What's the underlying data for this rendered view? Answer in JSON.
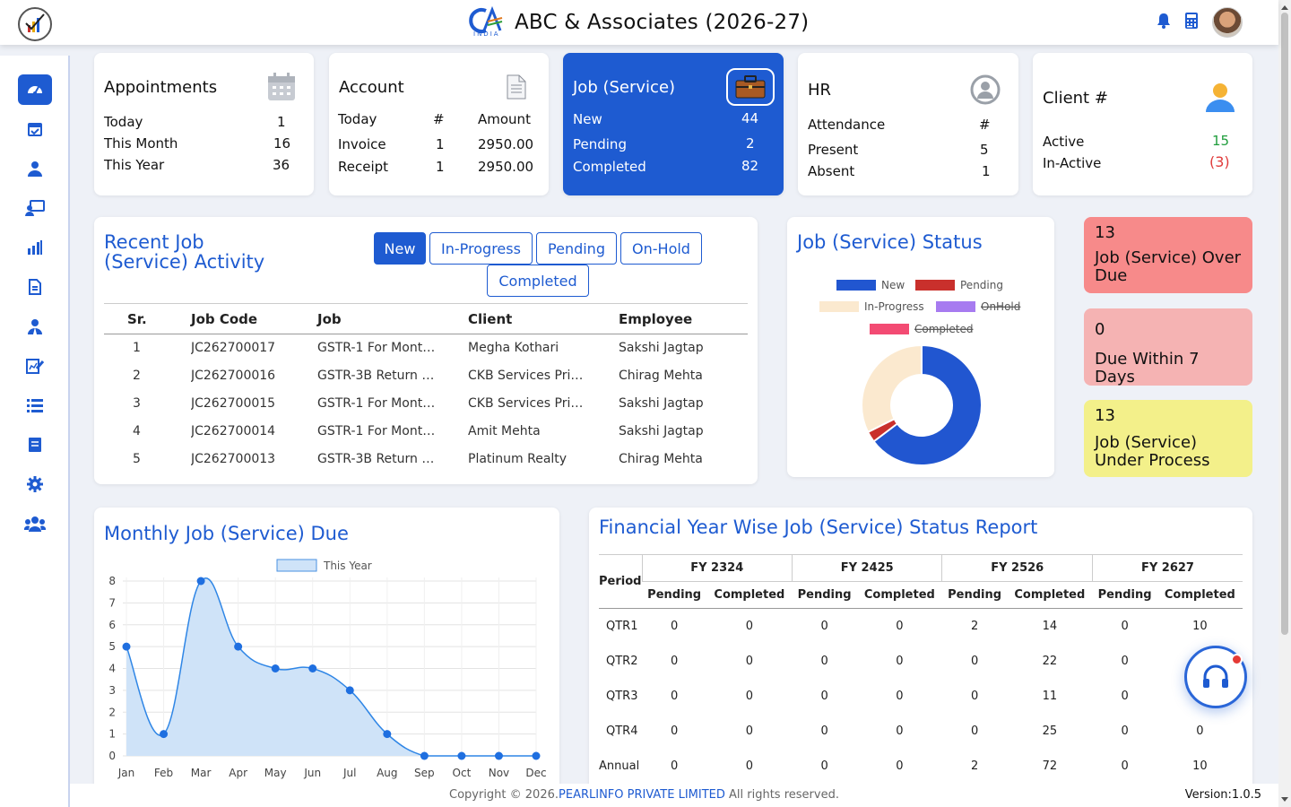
{
  "app": {
    "title": "ABC & Associates (2026-27)",
    "brand_sub": "INDIA"
  },
  "colors": {
    "primary": "#1e5bd1",
    "new": "#2156d0",
    "pending": "#c9302c",
    "in_progress": "#fbe9cf",
    "onhold": "#a77bf0",
    "completed": "#f34b73"
  },
  "appointments": {
    "title": "Appointments",
    "rows": [
      {
        "label": "Today",
        "value": "1"
      },
      {
        "label": "This Month",
        "value": "16"
      },
      {
        "label": "This Year",
        "value": "36"
      }
    ]
  },
  "account": {
    "title": "Account",
    "col1": "#",
    "col2": "Amount",
    "rows": [
      {
        "label": "Today",
        "count": "",
        "amount": ""
      },
      {
        "label": "Invoice",
        "count": "1",
        "amount": "2950.00"
      },
      {
        "label": "Receipt",
        "count": "1",
        "amount": "2950.00"
      }
    ]
  },
  "job_summary": {
    "title": "Job (Service)",
    "rows": [
      {
        "label": "New",
        "value": "44"
      },
      {
        "label": "Pending",
        "value": "2"
      },
      {
        "label": "Completed",
        "value": "82"
      }
    ]
  },
  "hr": {
    "title": "HR",
    "header_label": "Attendance",
    "header_value": "#",
    "rows": [
      {
        "label": "Present",
        "value": "5"
      },
      {
        "label": "Absent",
        "value": "1"
      }
    ]
  },
  "client": {
    "title": "Client #",
    "rows": [
      {
        "label": "Active",
        "value": "15"
      },
      {
        "label": "In-Active",
        "value": "(3)"
      }
    ]
  },
  "recent": {
    "title_line1": "Recent Job",
    "title_line2": "(Service) Activity",
    "tabs": [
      "New",
      "In-Progress",
      "Pending",
      "On-Hold",
      "Completed"
    ],
    "columns": [
      "Sr.",
      "Job Code",
      "Job",
      "Client",
      "Employee"
    ],
    "rows": [
      {
        "sr": "1",
        "code": "JC262700017",
        "job": "GSTR-1 For Mont…",
        "client": "Megha Kothari",
        "employee": "Sakshi Jagtap"
      },
      {
        "sr": "2",
        "code": "JC262700016",
        "job": "GSTR-3B Return …",
        "client": "CKB Services Pri…",
        "employee": "Chirag Mehta"
      },
      {
        "sr": "3",
        "code": "JC262700015",
        "job": "GSTR-1 For Mont…",
        "client": "CKB Services Pri…",
        "employee": "Sakshi Jagtap"
      },
      {
        "sr": "4",
        "code": "JC262700014",
        "job": "GSTR-1 For Mont…",
        "client": "Amit Mehta",
        "employee": "Sakshi Jagtap"
      },
      {
        "sr": "5",
        "code": "JC262700013",
        "job": "GSTR-3B Return …",
        "client": "Platinum Realty",
        "employee": "Chirag Mehta"
      }
    ]
  },
  "status": {
    "title": "Job (Service) Status",
    "legend": [
      {
        "name": "New",
        "hidden": false
      },
      {
        "name": "Pending",
        "hidden": false
      },
      {
        "name": "In-Progress",
        "hidden": false
      },
      {
        "name": "OnHold",
        "hidden": true
      },
      {
        "name": "Completed",
        "hidden": true
      }
    ],
    "chart_data": {
      "type": "pie",
      "variant": "doughnut",
      "categories": [
        "New",
        "Pending",
        "In-Progress"
      ],
      "values": [
        44,
        2,
        22
      ]
    }
  },
  "alerts": [
    {
      "count": "13",
      "label": "Job (Service) Over Due",
      "bg": "#f78a8a"
    },
    {
      "count": "0",
      "label": "Due Within 7 Days",
      "bg": "#f5b3b3"
    },
    {
      "count": "13",
      "label": "Job (Service) Under Process",
      "bg": "#f3f08a"
    }
  ],
  "monthly": {
    "title": "Monthly Job (Service) Due",
    "chart_data": {
      "type": "area",
      "categories": [
        "Jan",
        "Feb",
        "Mar",
        "Apr",
        "May",
        "Jun",
        "Jul",
        "Aug",
        "Sep",
        "Oct",
        "Nov",
        "Dec"
      ],
      "series": [
        {
          "name": "This Year",
          "values": [
            5,
            1,
            8,
            5,
            4,
            4,
            3,
            1,
            0,
            0,
            0,
            0
          ]
        }
      ],
      "ylim": [
        0,
        8
      ],
      "yticks": [
        "0",
        "1",
        "2",
        "3",
        "4",
        "5",
        "6",
        "7",
        "8"
      ],
      "grid": true,
      "legend": "top"
    }
  },
  "fy": {
    "title": "Financial Year Wise Job (Service) Status Report",
    "period_label": "Period",
    "years": [
      "FY 2324",
      "FY 2425",
      "FY 2526",
      "FY 2627"
    ],
    "sub": [
      "Pending",
      "Completed"
    ],
    "rows": [
      {
        "period": "QTR1",
        "values": [
          "0",
          "0",
          "0",
          "0",
          "2",
          "14",
          "0",
          "10"
        ]
      },
      {
        "period": "QTR2",
        "values": [
          "0",
          "0",
          "0",
          "0",
          "0",
          "22",
          "0",
          ""
        ]
      },
      {
        "period": "QTR3",
        "values": [
          "0",
          "0",
          "0",
          "0",
          "0",
          "11",
          "0",
          ""
        ]
      },
      {
        "period": "QTR4",
        "values": [
          "0",
          "0",
          "0",
          "0",
          "0",
          "25",
          "0",
          "0"
        ]
      },
      {
        "period": "Annual",
        "values": [
          "0",
          "0",
          "0",
          "0",
          "2",
          "72",
          "0",
          "10"
        ]
      }
    ]
  },
  "footer": {
    "copyright_prefix": "Copyright © 2026.",
    "company": "PEARLINFO PRIVATE LIMITED",
    "copyright_suffix": " All rights reserved.",
    "version": "Version:1.0.5"
  },
  "sidebar_icons": [
    "dashboard-icon",
    "calendar-check-icon",
    "user-icon",
    "monitor-user-icon",
    "bar-chart-icon",
    "document-icon",
    "user-tie-icon",
    "edit-sheet-icon",
    "list-icon",
    "book-icon",
    "gear-icon",
    "users-icon"
  ]
}
